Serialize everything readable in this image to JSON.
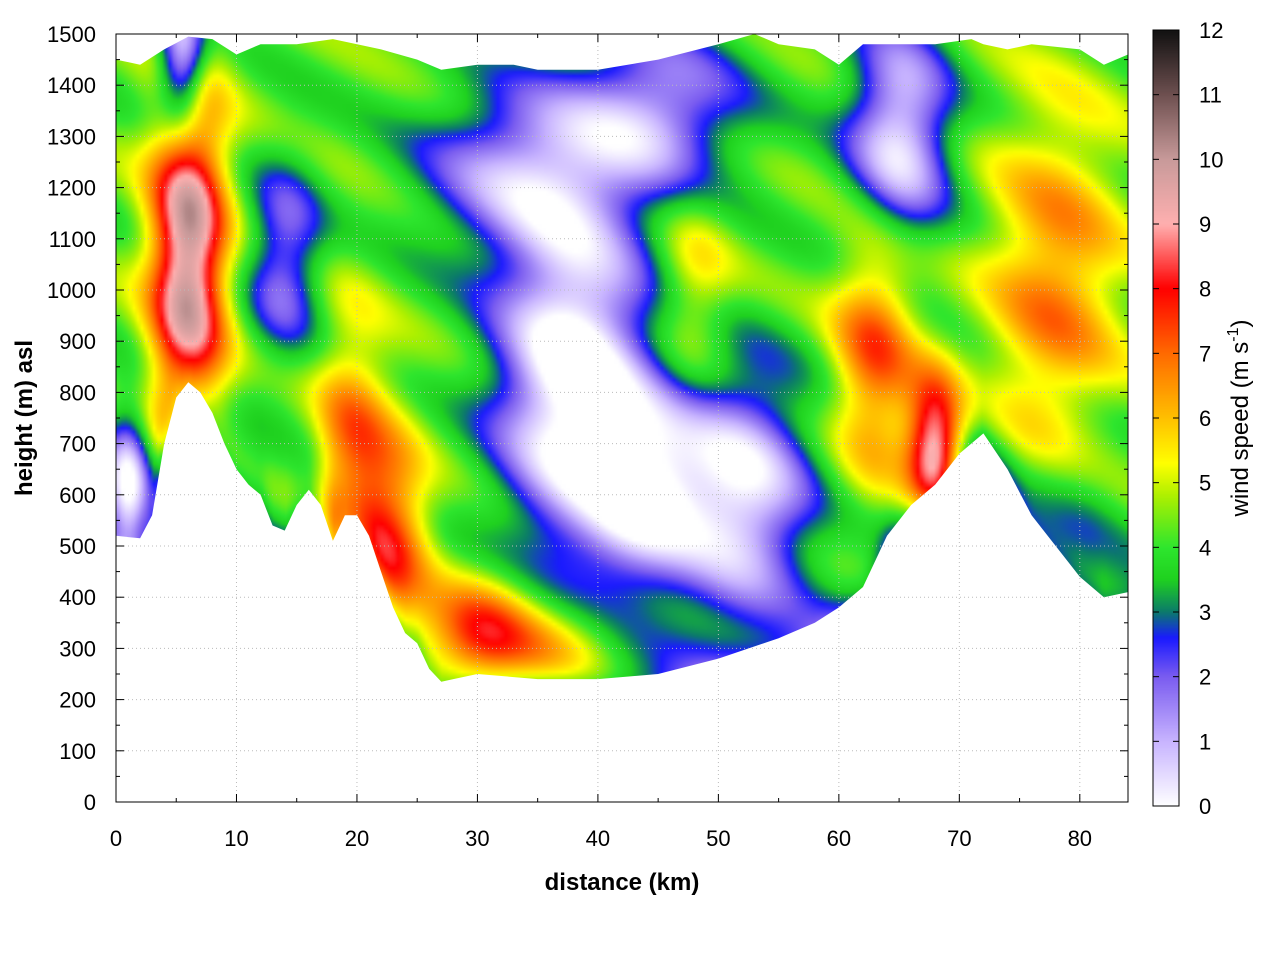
{
  "chart_data": {
    "type": "heatmap",
    "xlabel": "distance (km)",
    "ylabel": "height (m) asl",
    "xlim": [
      0,
      84
    ],
    "ylim": [
      0,
      1500
    ],
    "x_ticks": [
      "0",
      "10",
      "20",
      "30",
      "40",
      "50",
      "60",
      "70",
      "80"
    ],
    "y_ticks": [
      "0",
      "100",
      "200",
      "300",
      "400",
      "500",
      "600",
      "700",
      "800",
      "900",
      "1000",
      "1100",
      "1200",
      "1300",
      "1400",
      "1500"
    ],
    "grid": "dotted",
    "colorbar": {
      "label_main": "wind speed (m s",
      "label_sup": "-1",
      "label_end": ")",
      "range": [
        0,
        12
      ],
      "ticks": [
        "0",
        "1",
        "2",
        "3",
        "4",
        "5",
        "6",
        "7",
        "8",
        "9",
        "10",
        "11",
        "12"
      ],
      "stops": [
        {
          "v": 0,
          "c": "#ffffff"
        },
        {
          "v": 1,
          "c": "#c8b4ff"
        },
        {
          "v": 2,
          "c": "#7a5cf0"
        },
        {
          "v": 2.6,
          "c": "#1a1aff"
        },
        {
          "v": 3,
          "c": "#0b7a6a"
        },
        {
          "v": 3.5,
          "c": "#1fd11f"
        },
        {
          "v": 4,
          "c": "#2ee62e"
        },
        {
          "v": 4.8,
          "c": "#aef000"
        },
        {
          "v": 5.3,
          "c": "#ffff00"
        },
        {
          "v": 6,
          "c": "#ffc000"
        },
        {
          "v": 7,
          "c": "#ff6a00"
        },
        {
          "v": 8,
          "c": "#ff0000"
        },
        {
          "v": 9,
          "c": "#ffb0b0"
        },
        {
          "v": 10,
          "c": "#c89a9a"
        },
        {
          "v": 11,
          "c": "#6e5050"
        },
        {
          "v": 12,
          "c": "#111111"
        }
      ]
    },
    "terrain": [
      [
        0,
        520
      ],
      [
        2,
        515
      ],
      [
        3,
        560
      ],
      [
        4,
        700
      ],
      [
        5,
        790
      ],
      [
        6,
        820
      ],
      [
        7,
        800
      ],
      [
        8,
        760
      ],
      [
        9,
        700
      ],
      [
        10,
        650
      ],
      [
        11,
        620
      ],
      [
        12,
        600
      ],
      [
        13,
        540
      ],
      [
        14,
        530
      ],
      [
        15,
        580
      ],
      [
        16,
        610
      ],
      [
        17,
        580
      ],
      [
        18,
        510
      ],
      [
        19,
        560
      ],
      [
        20,
        560
      ],
      [
        21,
        520
      ],
      [
        22,
        450
      ],
      [
        23,
        380
      ],
      [
        24,
        330
      ],
      [
        25,
        310
      ],
      [
        26,
        260
      ],
      [
        27,
        235
      ],
      [
        28,
        240
      ],
      [
        30,
        250
      ],
      [
        35,
        240
      ],
      [
        40,
        240
      ],
      [
        45,
        250
      ],
      [
        50,
        280
      ],
      [
        55,
        320
      ],
      [
        58,
        350
      ],
      [
        60,
        380
      ],
      [
        62,
        420
      ],
      [
        64,
        520
      ],
      [
        66,
        580
      ],
      [
        68,
        620
      ],
      [
        70,
        680
      ],
      [
        72,
        720
      ],
      [
        74,
        650
      ],
      [
        76,
        560
      ],
      [
        78,
        500
      ],
      [
        80,
        440
      ],
      [
        82,
        400
      ],
      [
        84,
        410
      ]
    ],
    "top": [
      [
        0,
        1450
      ],
      [
        2,
        1440
      ],
      [
        4,
        1470
      ],
      [
        6,
        1495
      ],
      [
        8,
        1490
      ],
      [
        10,
        1460
      ],
      [
        12,
        1480
      ],
      [
        15,
        1480
      ],
      [
        18,
        1490
      ],
      [
        20,
        1480
      ],
      [
        22,
        1470
      ],
      [
        25,
        1450
      ],
      [
        27,
        1430
      ],
      [
        30,
        1440
      ],
      [
        33,
        1440
      ],
      [
        35,
        1430
      ],
      [
        40,
        1430
      ],
      [
        45,
        1450
      ],
      [
        50,
        1480
      ],
      [
        53,
        1500
      ],
      [
        55,
        1480
      ],
      [
        58,
        1470
      ],
      [
        60,
        1440
      ],
      [
        62,
        1480
      ],
      [
        65,
        1480
      ],
      [
        68,
        1480
      ],
      [
        71,
        1490
      ],
      [
        72,
        1480
      ],
      [
        74,
        1470
      ],
      [
        76,
        1480
      ],
      [
        80,
        1470
      ],
      [
        82,
        1440
      ],
      [
        84,
        1460
      ]
    ],
    "blobs": [
      {
        "x": 6,
        "y": 1060,
        "sx": 2.2,
        "sy": 260,
        "v": 6
      },
      {
        "x": 5.5,
        "y": 1450,
        "sx": 1.4,
        "sy": 100,
        "v": -5
      },
      {
        "x": 1,
        "y": 620,
        "sx": 1.3,
        "sy": 100,
        "v": -4
      },
      {
        "x": 14,
        "y": 1060,
        "sx": 2.2,
        "sy": 130,
        "v": -2.5
      },
      {
        "x": 19.5,
        "y": 620,
        "sx": 2.2,
        "sy": 210,
        "v": 3
      },
      {
        "x": 23,
        "y": 500,
        "sx": 2.2,
        "sy": 150,
        "v": 3
      },
      {
        "x": 30,
        "y": 320,
        "sx": 3.2,
        "sy": 80,
        "v": 3.5
      },
      {
        "x": 36,
        "y": 290,
        "sx": 4,
        "sy": 70,
        "v": 2
      },
      {
        "x": 38,
        "y": 820,
        "sx": 4.5,
        "sy": 230,
        "v": -5
      },
      {
        "x": 44,
        "y": 600,
        "sx": 3.5,
        "sy": 130,
        "v": -3.5
      },
      {
        "x": 52,
        "y": 600,
        "sx": 4,
        "sy": 170,
        "v": -4
      },
      {
        "x": 34,
        "y": 1230,
        "sx": 6,
        "sy": 120,
        "v": -3
      },
      {
        "x": 45,
        "y": 1350,
        "sx": 5,
        "sy": 110,
        "v": -3
      },
      {
        "x": 65,
        "y": 1300,
        "sx": 3,
        "sy": 150,
        "v": -4
      },
      {
        "x": 48,
        "y": 1000,
        "sx": 2.2,
        "sy": 130,
        "v": 1.5
      },
      {
        "x": 63,
        "y": 880,
        "sx": 2.5,
        "sy": 180,
        "v": 3
      },
      {
        "x": 68,
        "y": 680,
        "sx": 1.6,
        "sy": 100,
        "v": 5.5
      },
      {
        "x": 78,
        "y": 1000,
        "sx": 4,
        "sy": 250,
        "v": 2.5
      },
      {
        "x": 80,
        "y": 560,
        "sx": 3,
        "sy": 150,
        "v": -1
      }
    ]
  }
}
